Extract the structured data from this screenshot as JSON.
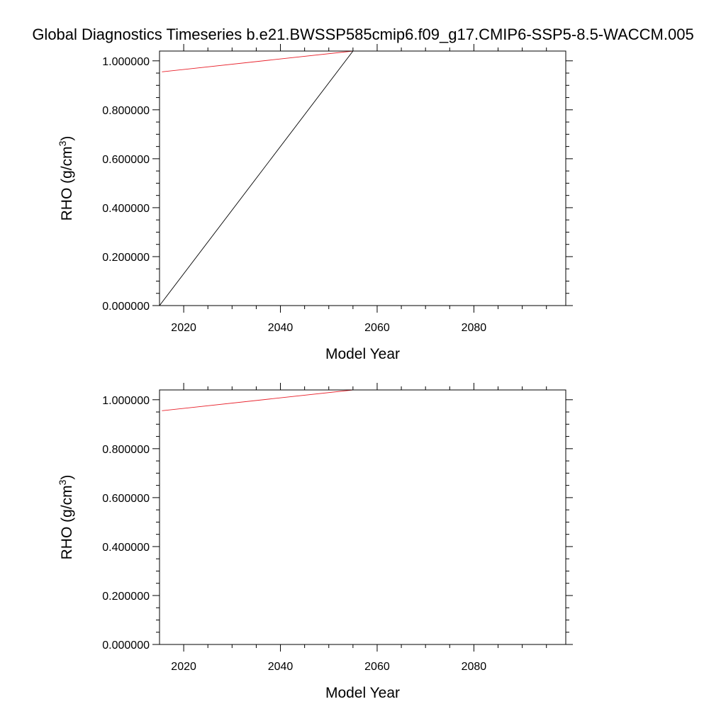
{
  "title": "Global Diagnostics Timeseries b.e21.BWSSP585cmip6.f09_g17.CMIP6-SSP5-8.5-WACCM.005",
  "chart_data": [
    {
      "type": "line",
      "xlabel": "Model Year",
      "ylabel": "RHO (g/cm",
      "ylabel_sup": "3",
      "ylabel_close": ")",
      "xlim": [
        2015,
        2099
      ],
      "ylim": [
        0,
        1.04
      ],
      "xticks": [
        2020,
        2040,
        2060,
        2080
      ],
      "xtick_labels": [
        "2020",
        "2040",
        "2060",
        "2080"
      ],
      "yticks": [
        0,
        0.2,
        0.4,
        0.6,
        0.8,
        1.0
      ],
      "ytick_labels": [
        "0.000000",
        "0.200000",
        "0.400000",
        "0.600000",
        "0.800000",
        "1.000000"
      ],
      "series": [
        {
          "color": "#000000",
          "x": [
            2015,
            2055
          ],
          "y": [
            0.0,
            1.04
          ]
        },
        {
          "color": "#e8202a",
          "x": [
            2015.5,
            2055,
            2016.5
          ],
          "y": [
            0.955,
            1.04,
            1.04
          ]
        }
      ]
    },
    {
      "type": "line",
      "xlabel": "Model Year",
      "ylabel": "RHO (g/cm",
      "ylabel_sup": "3",
      "ylabel_close": ")",
      "xlim": [
        2015,
        2099
      ],
      "ylim": [
        0,
        1.04
      ],
      "xticks": [
        2020,
        2040,
        2060,
        2080
      ],
      "xtick_labels": [
        "2020",
        "2040",
        "2060",
        "2080"
      ],
      "yticks": [
        0,
        0.2,
        0.4,
        0.6,
        0.8,
        1.0
      ],
      "ytick_labels": [
        "0.000000",
        "0.200000",
        "0.400000",
        "0.600000",
        "0.800000",
        "1.000000"
      ],
      "series": [
        {
          "color": "#e8202a",
          "x": [
            2015.5,
            2055,
            2016.5
          ],
          "y": [
            0.955,
            1.04,
            1.04
          ]
        }
      ]
    }
  ]
}
